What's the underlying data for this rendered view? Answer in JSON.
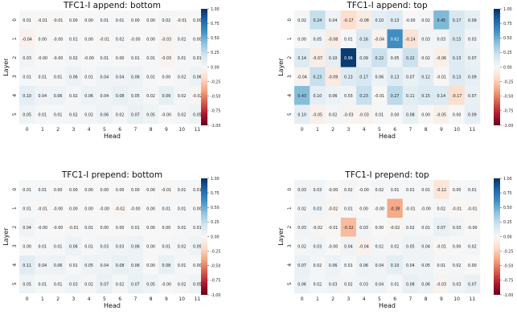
{
  "chart_data": [
    {
      "type": "heatmap",
      "title": "TFC1-I append: bottom",
      "xlabel": "Head",
      "ylabel": "Layer",
      "x_ticks": [
        "0",
        "1",
        "2",
        "3",
        "4",
        "5",
        "6",
        "7",
        "8",
        "9",
        "10",
        "11"
      ],
      "y_ticks": [
        "0",
        "1",
        "2",
        "3",
        "4",
        "5"
      ],
      "vmin": -1.0,
      "vmax": 1.0,
      "colorbar_ticks": [
        "1.00",
        "0.75",
        "0.50",
        "0.25",
        "0.00",
        "-0.25",
        "-0.50",
        "-0.75",
        "-1.00"
      ],
      "colormap": "RdBu",
      "cell_labels": [
        [
          "0.01",
          "-0.01",
          "-0.01",
          "0.00",
          "0.00",
          "0.01",
          "0.01",
          "0.00",
          "0.00",
          "0.02",
          "-0.01",
          "0.00"
        ],
        [
          "-0.04",
          "0.00",
          "-0.00",
          "0.01",
          "0.00",
          "-0.01",
          "0.02",
          "-0.00",
          "0.00",
          "-0.03",
          "0.02",
          "0.00"
        ],
        [
          "0.03",
          "-0.00",
          "-0.00",
          "0.02",
          "-0.00",
          "0.01",
          "0.00",
          "0.01",
          "0.01",
          "-0.03",
          "0.01",
          "0.01"
        ],
        [
          "0.01",
          "0.01",
          "0.01",
          "0.06",
          "0.01",
          "0.04",
          "0.04",
          "0.06",
          "0.01",
          "0.00",
          "0.02",
          "0.06"
        ],
        [
          "0.10",
          "0.04",
          "0.06",
          "0.02",
          "0.06",
          "0.04",
          "0.08",
          "0.05",
          "0.02",
          "0.09",
          "0.02",
          "-0.02"
        ],
        [
          "0.05",
          "0.01",
          "0.01",
          "0.02",
          "0.02",
          "0.06",
          "0.02",
          "0.07",
          "0.05",
          "-0.00",
          "0.02",
          "0.05"
        ]
      ],
      "values": [
        [
          0.01,
          -0.01,
          -0.01,
          0.0,
          0.0,
          0.01,
          0.01,
          0.0,
          0.0,
          0.02,
          -0.01,
          0.0
        ],
        [
          -0.04,
          0.0,
          -0.0,
          0.01,
          0.0,
          -0.01,
          0.02,
          -0.0,
          0.0,
          -0.03,
          0.02,
          0.0
        ],
        [
          0.03,
          -0.0,
          -0.0,
          0.02,
          -0.0,
          0.01,
          0.0,
          0.01,
          0.01,
          -0.03,
          0.01,
          0.01
        ],
        [
          0.01,
          0.01,
          0.01,
          0.06,
          0.01,
          0.04,
          0.04,
          0.06,
          0.01,
          0.0,
          0.02,
          0.06
        ],
        [
          0.1,
          0.04,
          0.06,
          0.02,
          0.06,
          0.04,
          0.08,
          0.05,
          0.02,
          0.09,
          0.02,
          -0.02
        ],
        [
          0.05,
          0.01,
          0.01,
          0.02,
          0.02,
          0.06,
          0.02,
          0.07,
          0.05,
          -0.0,
          0.02,
          0.05
        ]
      ]
    },
    {
      "type": "heatmap",
      "title": "TFC1-I append: top",
      "xlabel": "Head",
      "ylabel": "Layer",
      "x_ticks": [
        "0",
        "1",
        "2",
        "3",
        "4",
        "5",
        "6",
        "7",
        "8",
        "9",
        "10",
        "11"
      ],
      "y_ticks": [
        "0",
        "1",
        "2",
        "3",
        "4",
        "5"
      ],
      "vmin": -1.0,
      "vmax": 1.0,
      "colorbar_ticks": [
        "1.00",
        "0.75",
        "0.50",
        "0.25",
        "0.00",
        "-0.25",
        "-0.50",
        "-0.75",
        "-1.00"
      ],
      "colormap": "RdBu",
      "cell_labels": [
        [
          "0.02",
          "0.24",
          "0.04",
          "-0.17",
          "-0.08",
          "0.10",
          "0.13",
          "-0.00",
          "0.02",
          "0.45",
          "0.17",
          "0.09"
        ],
        [
          "0.00",
          "0.05",
          "-0.08",
          "0.01",
          "0.16",
          "-0.04",
          "0.62",
          "-0.14",
          "0.03",
          "0.03",
          "0.15",
          "0.03"
        ],
        [
          "0.14",
          "-0.07",
          "0.10",
          "0.96",
          "0.09",
          "0.22",
          "0.05",
          "0.22",
          "0.02",
          "-0.06",
          "0.13",
          "0.07"
        ],
        [
          "-0.04",
          "0.23",
          "-0.09",
          "0.13",
          "0.17",
          "0.06",
          "0.13",
          "0.07",
          "0.12",
          "-0.01",
          "0.13",
          "0.09"
        ],
        [
          "0.43",
          "0.10",
          "0.06",
          "0.03",
          "0.23",
          "-0.01",
          "0.27",
          "0.11",
          "0.15",
          "0.14",
          "-0.17",
          "0.07"
        ],
        [
          "0.10",
          "-0.05",
          "0.02",
          "-0.03",
          "-0.03",
          "0.01",
          "0.00",
          "0.08",
          "0.00",
          "-0.05",
          "0.00",
          "0.09"
        ]
      ],
      "values": [
        [
          0.02,
          0.24,
          0.04,
          -0.17,
          -0.08,
          0.1,
          0.13,
          -0.0,
          0.02,
          0.45,
          0.17,
          0.09
        ],
        [
          0.0,
          0.05,
          -0.08,
          0.01,
          0.16,
          -0.04,
          0.62,
          -0.14,
          0.03,
          0.03,
          0.15,
          0.03
        ],
        [
          0.14,
          -0.07,
          0.1,
          0.96,
          0.09,
          0.22,
          0.05,
          0.22,
          0.02,
          -0.06,
          0.13,
          0.07
        ],
        [
          -0.04,
          0.23,
          -0.09,
          0.13,
          0.17,
          0.06,
          0.13,
          0.07,
          0.12,
          -0.01,
          0.13,
          0.09
        ],
        [
          0.43,
          0.1,
          0.06,
          0.03,
          0.23,
          -0.01,
          0.27,
          0.11,
          0.15,
          0.14,
          -0.17,
          0.07
        ],
        [
          0.1,
          -0.05,
          0.02,
          -0.03,
          -0.03,
          0.01,
          0.0,
          0.08,
          0.0,
          -0.05,
          0.0,
          0.09
        ]
      ]
    },
    {
      "type": "heatmap",
      "title": "TFC1-I prepend: bottom",
      "xlabel": "Head",
      "ylabel": "Layer",
      "x_ticks": [
        "0",
        "1",
        "2",
        "3",
        "4",
        "5",
        "6",
        "7",
        "8",
        "9",
        "10",
        "11"
      ],
      "y_ticks": [
        "0",
        "1",
        "2",
        "3",
        "4",
        "5"
      ],
      "vmin": -1.0,
      "vmax": 1.0,
      "colorbar_ticks": [
        "1.00",
        "0.75",
        "0.50",
        "0.25",
        "0.00",
        "-0.25",
        "-0.50",
        "-0.75",
        "-1.00"
      ],
      "colormap": "RdBu",
      "cell_labels": [
        [
          "0.01",
          "0.01",
          "0.00",
          "0.00",
          "0.00",
          "0.00",
          "0.00",
          "0.00",
          "0.00",
          "-0.01",
          "0.01",
          "0.01"
        ],
        [
          "0.01",
          "-0.01",
          "-0.00",
          "0.00",
          "0.00",
          "-0.00",
          "-0.02",
          "-0.00",
          "0.00",
          "0.01",
          "0.01",
          "0.00"
        ],
        [
          "0.04",
          "-0.00",
          "-0.00",
          "-0.01",
          "0.01",
          "0.00",
          "0.00",
          "0.01",
          "0.00",
          "0.00",
          "0.01",
          "0.01"
        ],
        [
          "0.00",
          "0.01",
          "0.01",
          "0.06",
          "0.01",
          "0.03",
          "0.03",
          "0.06",
          "0.00",
          "0.01",
          "0.02",
          "0.05"
        ],
        [
          "0.11",
          "0.04",
          "0.06",
          "0.01",
          "0.05",
          "0.04",
          "0.08",
          "0.06",
          "0.00",
          "0.08",
          "0.01",
          "0.00"
        ],
        [
          "0.05",
          "0.01",
          "0.01",
          "0.03",
          "0.02",
          "0.07",
          "0.02",
          "0.07",
          "0.05",
          "-0.00",
          "0.02",
          "0.05"
        ]
      ],
      "values": [
        [
          0.01,
          0.01,
          0.0,
          0.0,
          0.0,
          0.0,
          0.0,
          0.0,
          0.0,
          -0.01,
          0.01,
          0.01
        ],
        [
          0.01,
          -0.01,
          -0.0,
          0.0,
          0.0,
          -0.0,
          -0.02,
          -0.0,
          0.0,
          0.01,
          0.01,
          0.0
        ],
        [
          0.04,
          -0.0,
          -0.0,
          -0.01,
          0.01,
          0.0,
          0.0,
          0.01,
          0.0,
          0.0,
          0.01,
          0.01
        ],
        [
          0.0,
          0.01,
          0.01,
          0.06,
          0.01,
          0.03,
          0.03,
          0.06,
          0.0,
          0.01,
          0.02,
          0.05
        ],
        [
          0.11,
          0.04,
          0.06,
          0.01,
          0.05,
          0.04,
          0.08,
          0.06,
          0.0,
          0.08,
          0.01,
          0.0
        ],
        [
          0.05,
          0.01,
          0.01,
          0.03,
          0.02,
          0.07,
          0.02,
          0.07,
          0.05,
          -0.0,
          0.02,
          0.05
        ]
      ]
    },
    {
      "type": "heatmap",
      "title": "TFC1-I prepend: top",
      "xlabel": "Head",
      "ylabel": "Layer",
      "x_ticks": [
        "0",
        "1",
        "2",
        "3",
        "4",
        "5",
        "6",
        "7",
        "8",
        "9",
        "10",
        "11"
      ],
      "y_ticks": [
        "0",
        "1",
        "2",
        "3",
        "4",
        "5"
      ],
      "vmin": -1.0,
      "vmax": 1.0,
      "colorbar_ticks": [
        "1.00",
        "0.75",
        "0.50",
        "0.25",
        "0.00",
        "-0.25",
        "-0.50",
        "-0.75",
        "-1.00"
      ],
      "colormap": "RdBu",
      "cell_labels": [
        [
          "0.03",
          "0.03",
          "-0.00",
          "0.02",
          "-0.00",
          "0.02",
          "0.01",
          "0.01",
          "0.01",
          "-0.12",
          "0.00",
          "0.01"
        ],
        [
          "0.02",
          "0.03",
          "-0.02",
          "0.01",
          "0.00",
          "-0.00",
          "-0.38",
          "-0.01",
          "-0.00",
          "0.02",
          "-0.01",
          "-0.01"
        ],
        [
          "0.03",
          "-0.02",
          "-0.01",
          "-0.32",
          "0.03",
          "0.00",
          "-0.02",
          "0.02",
          "0.01",
          "0.07",
          "0.03",
          "-0.00"
        ],
        [
          "0.02",
          "0.03",
          "-0.00",
          "0.04",
          "-0.04",
          "0.02",
          "0.02",
          "0.05",
          "0.04",
          "-0.01",
          "0.00",
          "0.02"
        ],
        [
          "0.07",
          "0.02",
          "0.06",
          "0.01",
          "0.06",
          "0.04",
          "0.10",
          "0.04",
          "0.05",
          "0.01",
          "0.02",
          "0.00"
        ],
        [
          "0.06",
          "0.02",
          "0.03",
          "0.02",
          "0.03",
          "0.04",
          "0.01",
          "0.08",
          "0.06",
          "-0.03",
          "0.03",
          "0.07"
        ]
      ],
      "values": [
        [
          0.03,
          0.03,
          -0.0,
          0.02,
          -0.0,
          0.02,
          0.01,
          0.01,
          0.01,
          -0.12,
          0.0,
          0.01
        ],
        [
          0.02,
          0.03,
          -0.02,
          0.01,
          0.0,
          -0.0,
          -0.38,
          -0.01,
          -0.0,
          0.02,
          -0.01,
          -0.01
        ],
        [
          0.03,
          -0.02,
          -0.01,
          -0.32,
          0.03,
          0.0,
          -0.02,
          0.02,
          0.01,
          0.07,
          0.03,
          -0.0
        ],
        [
          0.02,
          0.03,
          -0.0,
          0.04,
          -0.04,
          0.02,
          0.02,
          0.05,
          0.04,
          -0.01,
          0.0,
          0.02
        ],
        [
          0.07,
          0.02,
          0.06,
          0.01,
          0.06,
          0.04,
          0.1,
          0.04,
          0.05,
          0.01,
          0.02,
          0.0
        ],
        [
          0.06,
          0.02,
          0.03,
          0.02,
          0.03,
          0.04,
          0.01,
          0.08,
          0.06,
          -0.03,
          0.03,
          0.07
        ]
      ]
    }
  ]
}
